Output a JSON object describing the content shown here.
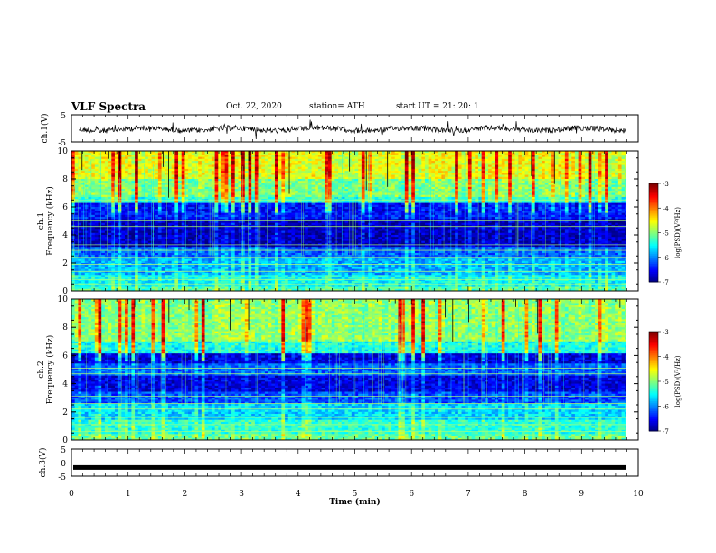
{
  "header": {
    "title": "VLF Spectra",
    "date": "Oct. 22, 2020",
    "station": "station= ATH",
    "start": "start  UT  =   21: 20: 1"
  },
  "chart_data": [
    {
      "type": "line",
      "name": "ch1-waveform",
      "ylabel": "ch.1(V)",
      "ylim": [
        -5,
        5
      ],
      "yticks": [
        "5",
        "-5"
      ],
      "x_range": [
        0,
        10
      ]
    },
    {
      "type": "heatmap",
      "name": "ch1-spectrogram",
      "ylabel_top": "ch.1",
      "ylabel": "Frequency  (kHz)",
      "ylim": [
        0,
        10
      ],
      "yticks": [
        "0",
        "2",
        "4",
        "6",
        "8",
        "10"
      ],
      "colorbar": {
        "label": "log(PSD)(V²/Hz)",
        "range": [
          -7,
          -3
        ],
        "ticks": [
          "-3",
          "-4",
          "-5",
          "-6",
          "-7"
        ]
      },
      "bands": [
        {
          "from": 0,
          "to": 0.3,
          "level": 0.45
        },
        {
          "from": 0.3,
          "to": 1.2,
          "level": 0.38
        },
        {
          "from": 1.2,
          "to": 2.5,
          "level": 0.3
        },
        {
          "from": 2.5,
          "to": 3.2,
          "level": 0.22
        },
        {
          "from": 3.2,
          "to": 5.2,
          "level": 0.06
        },
        {
          "from": 5.2,
          "to": 6.3,
          "level": 0.14
        },
        {
          "from": 6.3,
          "to": 6.7,
          "level": 0.42
        },
        {
          "from": 6.7,
          "to": 8.0,
          "level": 0.5
        },
        {
          "from": 8.0,
          "to": 10,
          "level": 0.6
        }
      ],
      "lines_kHz": [
        0.5,
        0.8,
        1.0,
        1.4,
        1.9,
        2.4,
        2.9,
        3.3,
        4.6,
        5.0,
        6.5
      ]
    },
    {
      "type": "heatmap",
      "name": "ch2-spectrogram",
      "ylabel_top": "ch.2",
      "ylabel": "Frequency  (kHz)",
      "ylim": [
        0,
        10
      ],
      "yticks": [
        "0",
        "2",
        "4",
        "6",
        "8",
        "10"
      ],
      "colorbar": {
        "label": "log(PSD)(V²/Hz)",
        "range": [
          -7,
          -3
        ],
        "ticks": [
          "-3",
          "-4",
          "-5",
          "-6",
          "-7"
        ]
      },
      "bands": [
        {
          "from": 0,
          "to": 0.4,
          "level": 0.48
        },
        {
          "from": 0.4,
          "to": 1.5,
          "level": 0.42
        },
        {
          "from": 1.5,
          "to": 2.6,
          "level": 0.34
        },
        {
          "from": 2.6,
          "to": 3.4,
          "level": 0.2
        },
        {
          "from": 3.4,
          "to": 4.6,
          "level": 0.1
        },
        {
          "from": 4.6,
          "to": 5.4,
          "level": 0.22
        },
        {
          "from": 5.4,
          "to": 6.2,
          "level": 0.1
        },
        {
          "from": 6.2,
          "to": 7.0,
          "level": 0.4
        },
        {
          "from": 7.0,
          "to": 10,
          "level": 0.52
        }
      ],
      "lines_kHz": [
        0.6,
        1.1,
        1.6,
        2.2,
        2.6,
        3.1,
        4.7,
        5.1,
        6.3
      ]
    },
    {
      "type": "line",
      "name": "ch3-waveform",
      "ylabel": "ch.3(V)",
      "ylim": [
        -5,
        5
      ],
      "yticks": [
        "5",
        "0",
        "-5"
      ],
      "x_range": [
        0,
        10
      ],
      "level": -1.8
    }
  ],
  "xaxis": {
    "label": "Time  (min)",
    "range": [
      0,
      10
    ],
    "ticks": [
      "0",
      "1",
      "2",
      "3",
      "4",
      "5",
      "6",
      "7",
      "8",
      "9",
      "10"
    ]
  },
  "colors": {
    "colormap": [
      "#00007f",
      "#0000ff",
      "#007fff",
      "#00ffff",
      "#7fff7f",
      "#ffff00",
      "#ff7f00",
      "#ff0000",
      "#7f0000"
    ]
  }
}
